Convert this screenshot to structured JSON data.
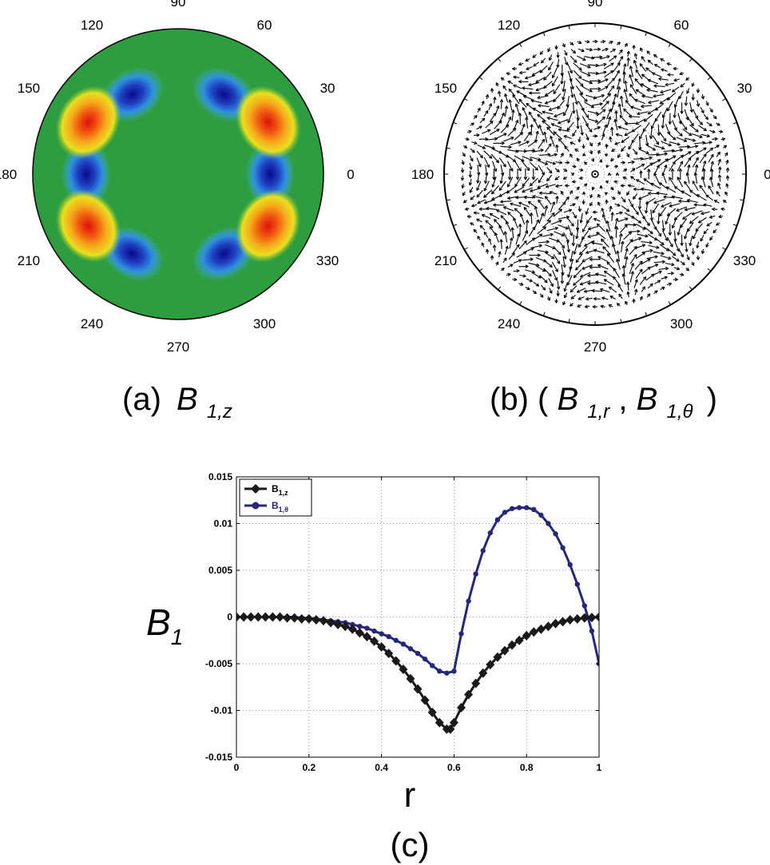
{
  "panel_a": {
    "caption_prefix": "(a)",
    "symbol": "B",
    "subscript": "1,z",
    "angle_labels": [
      "0",
      "30",
      "60",
      "90",
      "120",
      "150",
      "180",
      "210",
      "240",
      "270",
      "300",
      "330"
    ],
    "colormap": "jet",
    "background_color": "#2e9d3f"
  },
  "panel_b": {
    "caption_prefix": "(b) (",
    "symbol_1": "B",
    "subscript_1": "1,r",
    "separator": " ,",
    "symbol_2": "B",
    "subscript_2": "1,θ",
    "caption_suffix": ")",
    "angle_labels": [
      "0",
      "30",
      "60",
      "90",
      "120",
      "150",
      "180",
      "210",
      "240",
      "270",
      "300",
      "330"
    ]
  },
  "panel_c": {
    "caption": "(c)",
    "chart_data": {
      "type": "line",
      "xlabel": "r",
      "ylabel_symbol": "B",
      "ylabel_subscript": "1",
      "xlim": [
        0,
        1
      ],
      "ylim": [
        -0.015,
        0.015
      ],
      "xticks": [
        "0",
        "0.2",
        "0.4",
        "0.6",
        "0.8",
        "1"
      ],
      "yticks": [
        "-0.015",
        "-0.01",
        "-0.005",
        "0",
        "0.005",
        "0.01",
        "0.015"
      ],
      "grid": true,
      "legend_position": "top-left",
      "series": [
        {
          "name": "B",
          "name_sub": "1,z",
          "color": "#1a1a1a",
          "marker": "diamond",
          "x": [
            0,
            0.02,
            0.04,
            0.06,
            0.08,
            0.1,
            0.12,
            0.14,
            0.16,
            0.18,
            0.2,
            0.22,
            0.24,
            0.26,
            0.28,
            0.3,
            0.32,
            0.34,
            0.36,
            0.38,
            0.4,
            0.42,
            0.44,
            0.46,
            0.48,
            0.5,
            0.52,
            0.54,
            0.56,
            0.58,
            0.59,
            0.6,
            0.62,
            0.64,
            0.66,
            0.68,
            0.7,
            0.72,
            0.74,
            0.76,
            0.78,
            0.8,
            0.82,
            0.84,
            0.86,
            0.88,
            0.9,
            0.92,
            0.94,
            0.96,
            0.98,
            1
          ],
          "y": [
            0,
            0,
            0,
            0,
            0,
            0,
            0,
            -0.0001,
            -0.0001,
            -0.0002,
            -0.0002,
            -0.0003,
            -0.0004,
            -0.0006,
            -0.0008,
            -0.001,
            -0.0013,
            -0.0017,
            -0.0021,
            -0.0026,
            -0.0032,
            -0.0039,
            -0.0047,
            -0.0056,
            -0.0066,
            -0.0077,
            -0.0089,
            -0.0102,
            -0.0113,
            -0.012,
            -0.012,
            -0.0113,
            -0.0097,
            -0.0083,
            -0.0071,
            -0.006,
            -0.0051,
            -0.0043,
            -0.0036,
            -0.003,
            -0.0025,
            -0.002,
            -0.0016,
            -0.0013,
            -0.001,
            -0.0007,
            -0.0005,
            -0.0003,
            -0.0002,
            -0.0001,
            -5e-05,
            0
          ]
        },
        {
          "name": "B",
          "name_sub": "1,θ",
          "color": "#26277a",
          "marker": "circle",
          "x": [
            0,
            0.02,
            0.04,
            0.06,
            0.08,
            0.1,
            0.12,
            0.14,
            0.16,
            0.18,
            0.2,
            0.22,
            0.24,
            0.26,
            0.28,
            0.3,
            0.32,
            0.34,
            0.36,
            0.38,
            0.4,
            0.42,
            0.44,
            0.46,
            0.48,
            0.5,
            0.52,
            0.54,
            0.56,
            0.58,
            0.6,
            0.62,
            0.64,
            0.66,
            0.68,
            0.7,
            0.72,
            0.74,
            0.76,
            0.78,
            0.8,
            0.82,
            0.84,
            0.86,
            0.88,
            0.9,
            0.92,
            0.94,
            0.96,
            0.98,
            1
          ],
          "y": [
            0,
            0,
            0,
            0,
            0,
            0,
            0,
            0,
            0,
            -0.0001,
            -0.0001,
            -0.0002,
            -0.0003,
            -0.0004,
            -0.0005,
            -0.0006,
            -0.0008,
            -0.001,
            -0.0012,
            -0.0015,
            -0.0018,
            -0.0021,
            -0.0025,
            -0.0029,
            -0.0034,
            -0.0039,
            -0.0045,
            -0.0052,
            -0.0058,
            -0.006,
            -0.0058,
            -0.0018,
            0.0017,
            0.0046,
            0.0071,
            0.009,
            0.0104,
            0.0112,
            0.0116,
            0.0117,
            0.0117,
            0.0115,
            0.0109,
            0.01,
            0.0089,
            0.0074,
            0.0056,
            0.0035,
            0.0012,
            -0.0015,
            -0.005
          ]
        }
      ]
    }
  }
}
